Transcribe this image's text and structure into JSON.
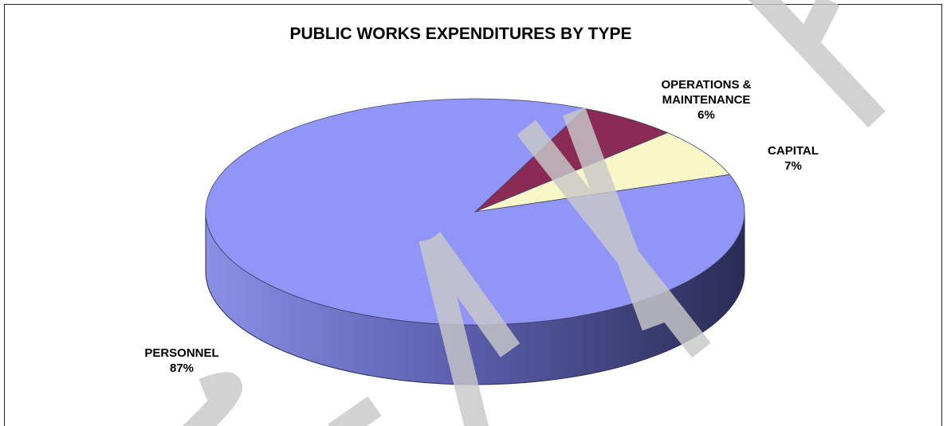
{
  "chart_data": {
    "type": "pie",
    "title": "PUBLIC WORKS EXPENDITURES BY TYPE",
    "slices": [
      {
        "label_lines": [
          "OPERATIONS &",
          "MAINTENANCE"
        ],
        "percent_label": "6%",
        "value": 6,
        "color": "#8a2a55"
      },
      {
        "label_lines": [
          "CAPITAL"
        ],
        "percent_label": "7%",
        "value": 7,
        "color": "#f7f7c8"
      },
      {
        "label_lines": [
          "PERSONNEL"
        ],
        "percent_label": "87%",
        "value": 87,
        "color": "#9095f7"
      }
    ],
    "legend": "none"
  },
  "watermark": {
    "text": "DRAFT",
    "color": "#c8c8c8"
  }
}
